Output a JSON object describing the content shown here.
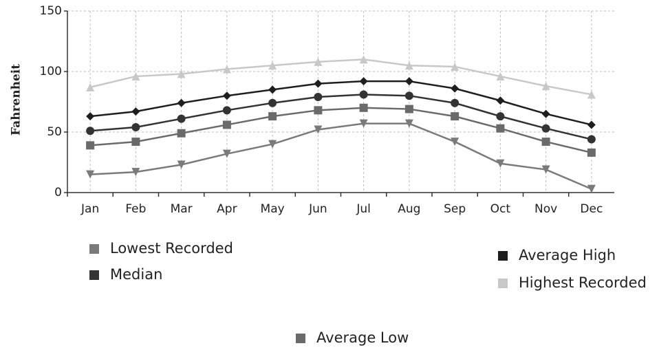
{
  "chart_data": {
    "type": "line",
    "y_label": "Fahrenheit",
    "categories": [
      "Jan",
      "Feb",
      "Mar",
      "Apr",
      "May",
      "Jun",
      "Jul",
      "Aug",
      "Sep",
      "Oct",
      "Nov",
      "Dec"
    ],
    "series": [
      {
        "name": "Lowest Recorded",
        "color": "#7a7a7a",
        "marker": "triangle-down",
        "values": [
          15,
          17,
          23,
          32,
          40,
          52,
          57,
          57,
          42,
          24,
          19,
          3
        ]
      },
      {
        "name": "Median",
        "color": "#333333",
        "marker": "circle",
        "values": [
          51,
          54,
          61,
          68,
          74,
          79,
          81,
          80,
          74,
          63,
          53,
          44
        ]
      },
      {
        "name": "Average High",
        "color": "#1e1e1e",
        "marker": "diamond",
        "values": [
          63,
          67,
          74,
          80,
          85,
          90,
          92,
          92,
          86,
          76,
          65,
          56
        ]
      },
      {
        "name": "Highest Recorded",
        "color": "#c8c8c8",
        "marker": "triangle-up",
        "values": [
          87,
          96,
          98,
          102,
          105,
          108,
          110,
          105,
          104,
          96,
          88,
          81
        ]
      },
      {
        "name": "Average Low",
        "color": "#6a6a6a",
        "marker": "square",
        "values": [
          39,
          42,
          49,
          56,
          63,
          68,
          70,
          69,
          63,
          53,
          42,
          33
        ]
      }
    ],
    "ylim": [
      0,
      150
    ],
    "yticks": [
      0,
      50,
      100,
      150
    ],
    "grid": true
  }
}
